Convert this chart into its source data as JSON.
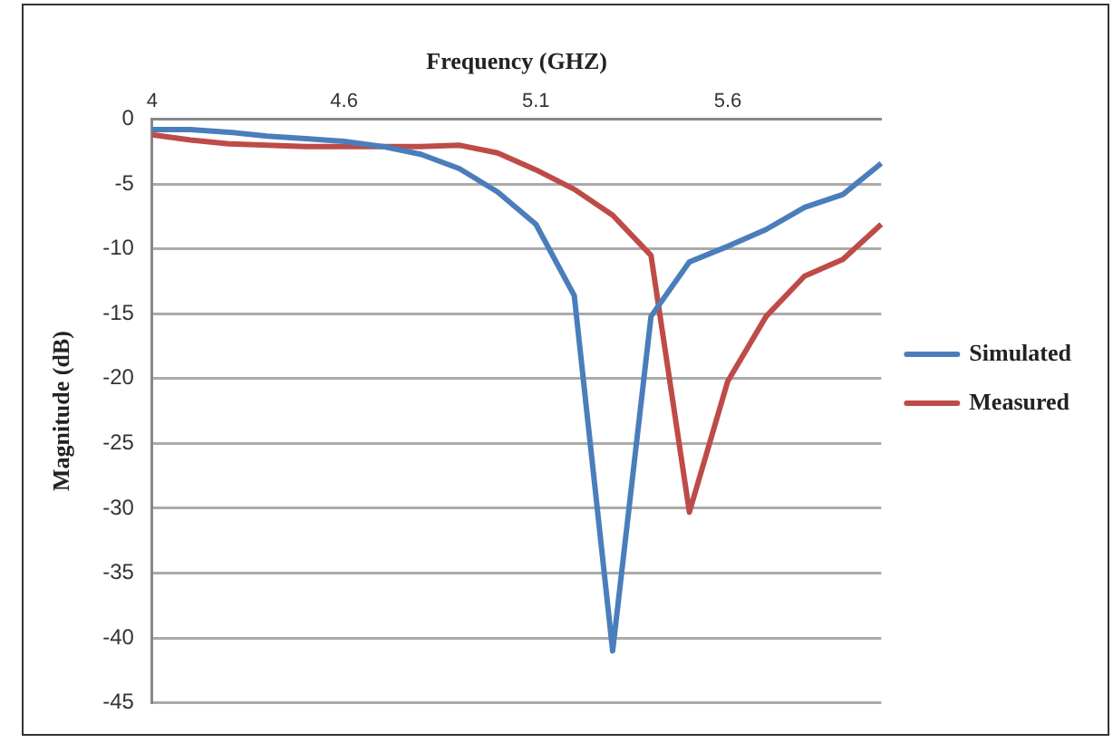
{
  "chart_data": {
    "type": "line",
    "xlabel": "Frequency (GHZ)",
    "ylabel": "Magnitude (dB)",
    "categories": [
      "4",
      null,
      null,
      null,
      null,
      "4.6",
      null,
      null,
      null,
      null,
      "5.1",
      null,
      null,
      null,
      null,
      "5.6",
      null,
      null,
      null,
      null
    ],
    "series": [
      {
        "name": "Simulated",
        "color": "#4a7ebb",
        "values": [
          -0.8,
          -0.8,
          -1.0,
          -1.3,
          -1.5,
          -1.7,
          -2.1,
          -2.7,
          -3.8,
          -5.6,
          -8.1,
          -13.6,
          -41,
          -15.2,
          -11,
          -9.8,
          -8.5,
          -6.8,
          -5.8,
          -3.4
        ]
      },
      {
        "name": "Measured",
        "color": "#be4b48",
        "values": [
          -1.2,
          -1.6,
          -1.9,
          -2.0,
          -2.1,
          -2.1,
          -2.1,
          -2.1,
          -2.0,
          -2.6,
          -3.9,
          -5.4,
          -7.4,
          -10.5,
          -30.3,
          -20.2,
          -15.2,
          -12.1,
          -10.8,
          -8.1
        ]
      }
    ],
    "ylim": [
      -45,
      0
    ],
    "yticks": [
      0,
      -5,
      -10,
      -15,
      -20,
      -25,
      -30,
      -35,
      -40,
      -45
    ],
    "grid": "y",
    "legend": "right",
    "marker": "none",
    "line_style": "solid"
  }
}
